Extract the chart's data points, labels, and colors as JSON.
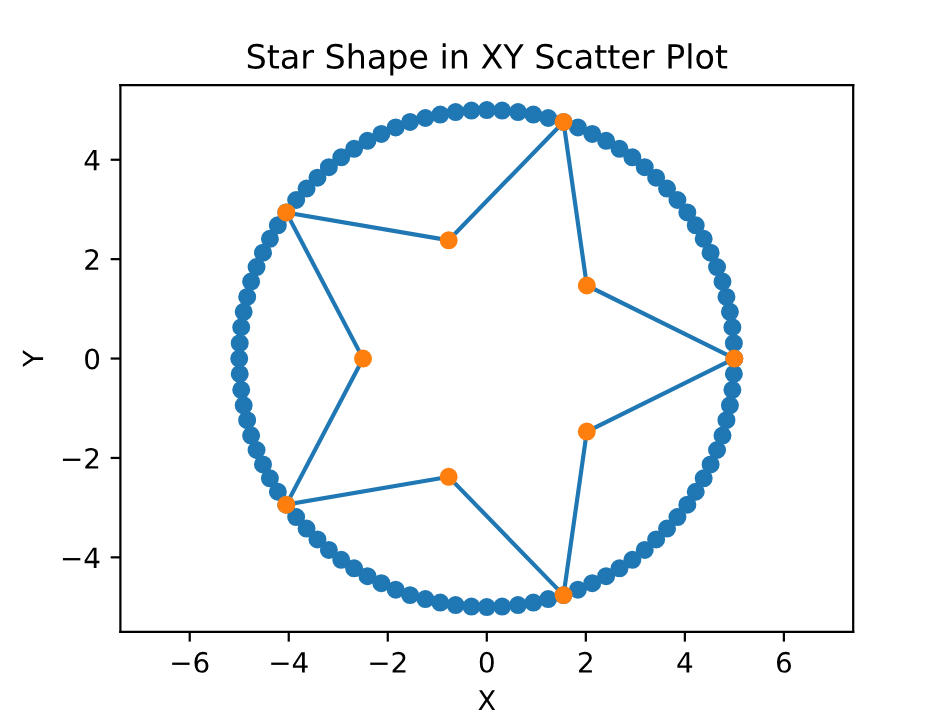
{
  "chart_data": {
    "type": "scatter",
    "title": "Star Shape in XY Scatter Plot",
    "xlabel": "X",
    "ylabel": "Y",
    "xlim": [
      -7.4,
      7.4
    ],
    "ylim": [
      -5.5,
      5.5
    ],
    "xticks": [
      {
        "value": -6,
        "label": "−6"
      },
      {
        "value": -4,
        "label": "−4"
      },
      {
        "value": -2,
        "label": "−2"
      },
      0,
      2,
      4,
      6
    ],
    "yticks": [
      {
        "value": -4,
        "label": "−4"
      },
      {
        "value": -2,
        "label": "−2"
      },
      0,
      2,
      4
    ],
    "grid": false,
    "legend": false,
    "marker": "circle",
    "series": [
      {
        "color": "#1f77b4",
        "x": [
          5.0,
          4.99,
          4.96,
          4.91,
          4.84,
          4.76,
          4.65,
          4.52,
          4.38,
          4.22,
          4.05,
          3.85,
          3.64,
          3.42,
          3.19,
          2.94,
          2.68,
          2.41,
          2.13,
          1.84,
          1.55,
          1.24,
          0.94,
          0.63,
          0.31,
          0,
          -0.31,
          -0.63,
          -0.94,
          -1.24,
          -1.55,
          -1.84,
          -2.13,
          -2.41,
          -2.68,
          -2.94,
          -3.19,
          -3.42,
          -3.64,
          -3.85,
          -4.05,
          -4.22,
          -4.38,
          -4.52,
          -4.65,
          -4.76,
          -4.84,
          -4.91,
          -4.96,
          -4.99,
          -5.0,
          -4.99,
          -4.96,
          -4.91,
          -4.84,
          -4.76,
          -4.65,
          -4.52,
          -4.38,
          -4.22,
          -4.05,
          -3.85,
          -3.64,
          -3.42,
          -3.19,
          -2.94,
          -2.68,
          -2.41,
          -2.13,
          -1.84,
          -1.55,
          -1.24,
          -0.94,
          -0.63,
          -0.31,
          0,
          0.31,
          0.63,
          0.94,
          1.24,
          1.55,
          1.84,
          2.13,
          2.41,
          2.68,
          2.94,
          3.19,
          3.42,
          3.64,
          3.85,
          4.05,
          4.22,
          4.38,
          4.52,
          4.65,
          4.76,
          4.84,
          4.91,
          4.96,
          4.99
        ],
        "values": [
          0,
          0.31,
          0.63,
          0.94,
          1.24,
          1.55,
          1.84,
          2.13,
          2.41,
          2.68,
          2.94,
          3.19,
          3.42,
          3.64,
          3.85,
          4.05,
          4.22,
          4.38,
          4.52,
          4.65,
          4.76,
          4.84,
          4.91,
          4.96,
          4.99,
          5.0,
          4.99,
          4.96,
          4.91,
          4.84,
          4.76,
          4.65,
          4.52,
          4.38,
          4.22,
          4.05,
          3.85,
          3.64,
          3.42,
          3.19,
          2.94,
          2.68,
          2.41,
          2.13,
          1.84,
          1.55,
          1.24,
          0.94,
          0.63,
          0.31,
          0,
          -0.31,
          -0.63,
          -0.94,
          -1.24,
          -1.55,
          -1.84,
          -2.13,
          -2.41,
          -2.68,
          -2.94,
          -3.19,
          -3.42,
          -3.64,
          -3.85,
          -4.05,
          -4.22,
          -4.38,
          -4.52,
          -4.65,
          -4.76,
          -4.84,
          -4.91,
          -4.96,
          -4.99,
          -5.0,
          -4.99,
          -4.96,
          -4.91,
          -4.84,
          -4.76,
          -4.65,
          -4.52,
          -4.38,
          -4.22,
          -4.05,
          -3.85,
          -3.64,
          -3.42,
          -3.19,
          -2.94,
          -2.68,
          -2.41,
          -2.13,
          -1.84,
          -1.55,
          -1.24,
          -0.94,
          -0.63,
          -0.31
        ]
      },
      {
        "type": "line",
        "color": "#1f77b4",
        "marker": "none",
        "line_style": "solid",
        "x": [
          2.02,
          5.0
        ],
        "values": [
          1.47,
          0
        ]
      },
      {
        "type": "line",
        "color": "#1f77b4",
        "marker": "none",
        "line_style": "solid",
        "x": [
          1.55,
          2.02
        ],
        "values": [
          4.76,
          1.47
        ]
      },
      {
        "type": "line",
        "color": "#1f77b4",
        "marker": "none",
        "line_style": "solid",
        "x": [
          -0.77,
          1.55
        ],
        "values": [
          2.38,
          4.76
        ]
      },
      {
        "type": "line",
        "color": "#1f77b4",
        "marker": "none",
        "line_style": "solid",
        "x": [
          -4.05,
          -0.77
        ],
        "values": [
          2.94,
          2.38
        ]
      },
      {
        "type": "line",
        "color": "#1f77b4",
        "marker": "none",
        "line_style": "solid",
        "x": [
          -4.05,
          -2.5
        ],
        "values": [
          2.94,
          0
        ]
      },
      {
        "type": "line",
        "color": "#1f77b4",
        "marker": "none",
        "line_style": "solid",
        "x": [
          -4.05,
          -2.5
        ],
        "values": [
          -2.94,
          0
        ]
      },
      {
        "type": "line",
        "color": "#1f77b4",
        "marker": "none",
        "line_style": "solid",
        "x": [
          -4.05,
          -0.77
        ],
        "values": [
          -2.94,
          -2.38
        ]
      },
      {
        "type": "line",
        "color": "#1f77b4",
        "marker": "none",
        "line_style": "solid",
        "x": [
          -0.77,
          1.55
        ],
        "values": [
          -2.38,
          -4.76
        ]
      },
      {
        "type": "line",
        "color": "#1f77b4",
        "marker": "none",
        "line_style": "solid",
        "x": [
          1.55,
          2.02
        ],
        "values": [
          -4.76,
          -1.47
        ]
      },
      {
        "type": "line",
        "color": "#1f77b4",
        "marker": "none",
        "line_style": "solid",
        "x": [
          2.02,
          5.0
        ],
        "values": [
          -1.47,
          0
        ]
      },
      {
        "color": "#ff7f0e",
        "x": [
          5.0,
          2.02,
          1.55,
          -0.77,
          -4.05,
          -2.5,
          -4.05,
          -0.77,
          1.55,
          2.02
        ],
        "values": [
          0,
          1.47,
          4.76,
          2.38,
          2.94,
          0,
          -2.94,
          -2.38,
          -4.76,
          -1.47
        ]
      }
    ]
  }
}
